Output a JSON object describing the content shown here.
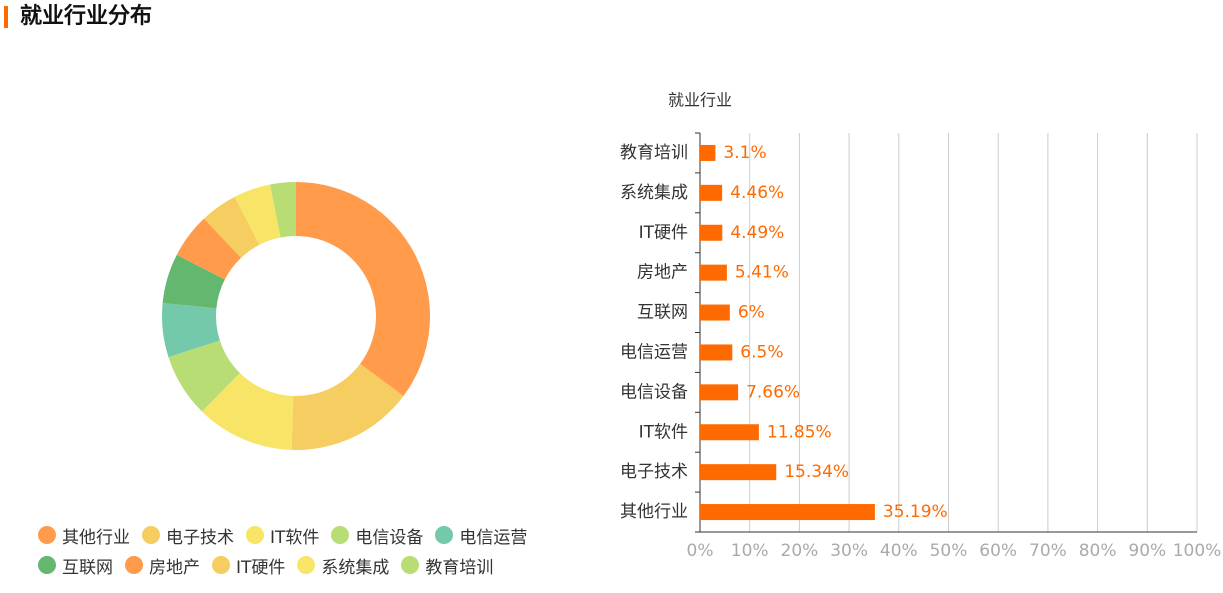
{
  "header": {
    "title": "就业行业分布"
  },
  "chart_data": [
    {
      "type": "pie",
      "categories": [
        "其他行业",
        "电子技术",
        "IT软件",
        "电信设备",
        "电信运营",
        "互联网",
        "房地产",
        "IT硬件",
        "系统集成",
        "教育培训"
      ],
      "values": [
        35.19,
        15.34,
        11.85,
        7.66,
        6.5,
        6,
        5.41,
        4.49,
        4.46,
        3.1
      ],
      "colors": [
        "#ff9b4b",
        "#f5cd60",
        "#f8e467",
        "#b8dd74",
        "#73c9a9",
        "#63b76f",
        "#ff9b4b",
        "#f5cd60",
        "#f8e467",
        "#b8dd74"
      ]
    },
    {
      "type": "bar",
      "title": "就业行业",
      "categories": [
        "其他行业",
        "电子技术",
        "IT软件",
        "电信设备",
        "电信运营",
        "互联网",
        "房地产",
        "IT硬件",
        "系统集成",
        "教育培训"
      ],
      "values": [
        35.19,
        15.34,
        11.85,
        7.66,
        6.5,
        6,
        5.41,
        4.49,
        4.46,
        3.1
      ],
      "value_labels": [
        "35.19%",
        "15.34%",
        "11.85%",
        "7.66%",
        "6.5%",
        "6%",
        "5.41%",
        "4.49%",
        "4.46%",
        "3.1%"
      ],
      "color": "#ff6a00",
      "xlim": [
        0,
        100
      ],
      "xticks": [
        {
          "value": 0,
          "label": "0%"
        },
        {
          "value": 10,
          "label": "10%"
        },
        {
          "value": 20,
          "label": "20%"
        },
        {
          "value": 30,
          "label": "30%"
        },
        {
          "value": 40,
          "label": "40%"
        },
        {
          "value": 50,
          "label": "50%"
        },
        {
          "value": 60,
          "label": "60%"
        },
        {
          "value": 70,
          "label": "70%"
        },
        {
          "value": 80,
          "label": "80%"
        },
        {
          "value": 90,
          "label": "90%"
        },
        {
          "value": 100,
          "label": "100%"
        }
      ],
      "grid": true
    }
  ]
}
